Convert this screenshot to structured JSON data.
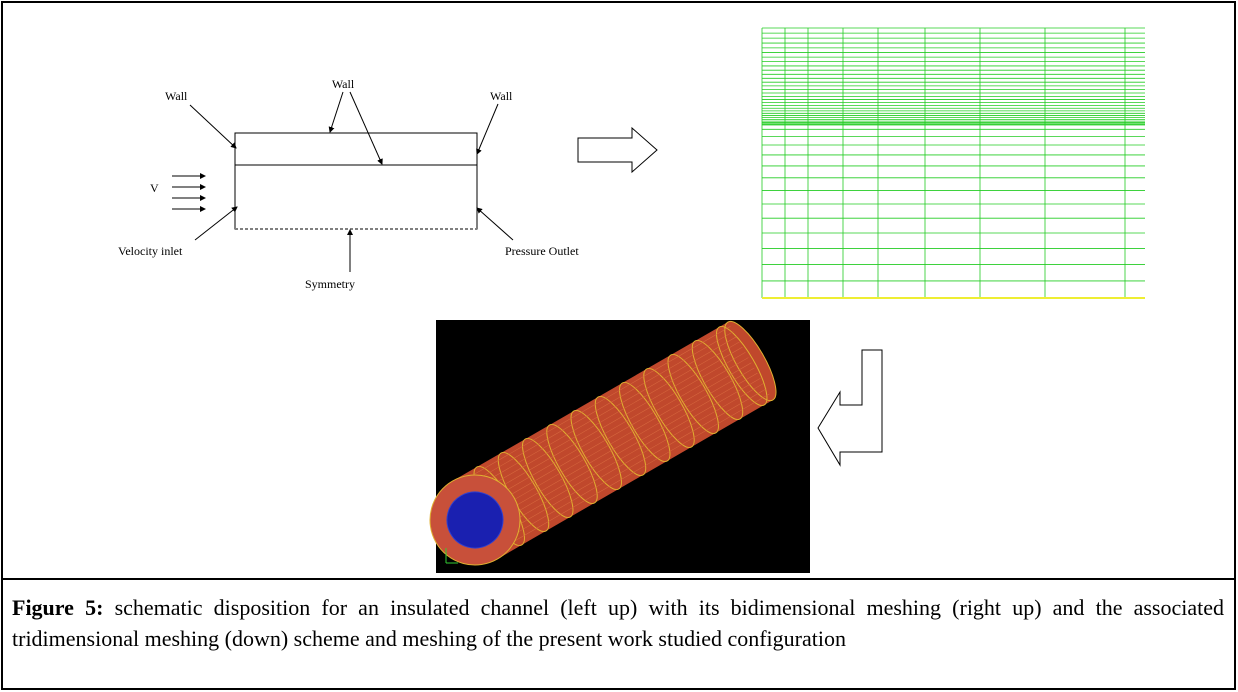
{
  "figure": {
    "schematic": {
      "labels": {
        "wall_left": "Wall",
        "wall_top": "Wall",
        "wall_right": "Wall",
        "velocity": "V",
        "inlet": "Velocity inlet",
        "outlet": "Pressure Outlet",
        "symmetry": "Symmetry"
      }
    },
    "caption": {
      "label": "Figure 5:",
      "text": "schematic disposition for an insulated channel (left up) with its bidimensional meshing (right up) and the associated tridimensional meshing (down) scheme and meshing of the present work studied configuration"
    }
  }
}
